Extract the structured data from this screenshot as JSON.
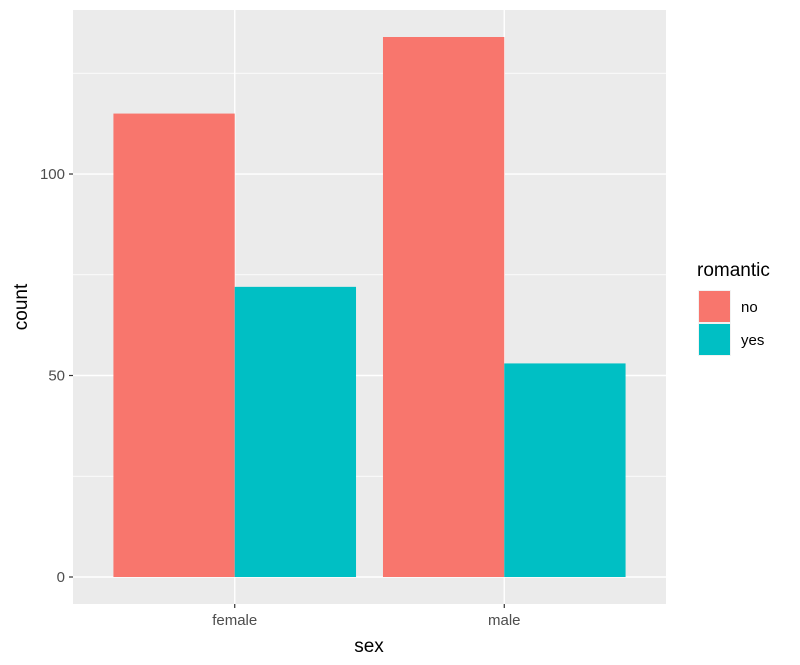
{
  "chart_data": {
    "type": "bar",
    "bar_mode": "grouped",
    "categories": [
      "female",
      "male"
    ],
    "series": [
      {
        "name": "no",
        "values": [
          115,
          134
        ],
        "color": "#F8766D"
      },
      {
        "name": "yes",
        "values": [
          72,
          53
        ],
        "color": "#00BFC4"
      }
    ],
    "xlabel": "sex",
    "ylabel": "count",
    "ylim": [
      -6.7,
      140.7
    ],
    "yticks": [
      0,
      50,
      100
    ],
    "ytick_labels": [
      "0",
      "50",
      "100"
    ],
    "legend_title": "romantic",
    "legend_position": "right",
    "grid": true,
    "panel_background": "#EBEBEB",
    "grid_color": "#FFFFFF"
  }
}
